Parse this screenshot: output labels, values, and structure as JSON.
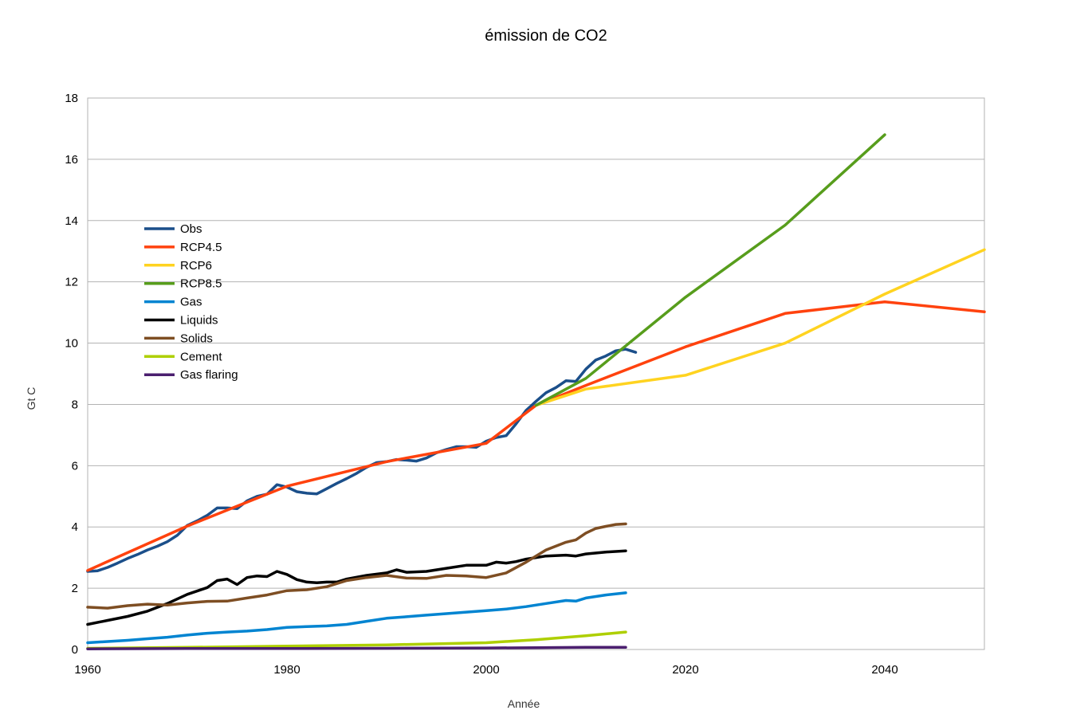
{
  "chart_data": {
    "type": "line",
    "title": "émission de CO2",
    "xlabel": "Année",
    "ylabel": "Gt C",
    "xlim": [
      1960,
      2050
    ],
    "ylim": [
      0,
      18
    ],
    "xticks": [
      1960,
      1980,
      2000,
      2020,
      2040
    ],
    "yticks": [
      0,
      2,
      4,
      6,
      8,
      10,
      12,
      14,
      16,
      18
    ],
    "grid": "horizontal",
    "legend": "left",
    "series": [
      {
        "name": "Obs",
        "color": "#1b4f8a",
        "x": [
          1960,
          1961,
          1962,
          1963,
          1964,
          1965,
          1966,
          1967,
          1968,
          1969,
          1970,
          1971,
          1972,
          1973,
          1974,
          1975,
          1976,
          1977,
          1978,
          1979,
          1980,
          1981,
          1982,
          1983,
          1984,
          1985,
          1986,
          1987,
          1988,
          1989,
          1990,
          1991,
          1992,
          1993,
          1994,
          1995,
          1996,
          1997,
          1998,
          1999,
          2000,
          2001,
          2002,
          2003,
          2004,
          2005,
          2006,
          2007,
          2008,
          2009,
          2010,
          2011,
          2012,
          2013,
          2014,
          2015
        ],
        "y": [
          2.55,
          2.57,
          2.68,
          2.82,
          2.97,
          3.1,
          3.25,
          3.37,
          3.52,
          3.73,
          4.05,
          4.2,
          4.38,
          4.62,
          4.62,
          4.6,
          4.85,
          5.0,
          5.07,
          5.38,
          5.3,
          5.15,
          5.1,
          5.08,
          5.25,
          5.42,
          5.58,
          5.75,
          5.95,
          6.1,
          6.13,
          6.2,
          6.18,
          6.15,
          6.25,
          6.42,
          6.53,
          6.62,
          6.62,
          6.6,
          6.8,
          6.92,
          6.98,
          7.37,
          7.8,
          8.1,
          8.38,
          8.55,
          8.77,
          8.75,
          9.15,
          9.45,
          9.58,
          9.75,
          9.8,
          9.7
        ]
      },
      {
        "name": "RCP4.5",
        "color": "#ff420e",
        "x": [
          1960,
          1970,
          1980,
          1990,
          2000,
          2005,
          2010,
          2020,
          2030,
          2040,
          2050
        ],
        "y": [
          2.58,
          4.03,
          5.33,
          6.13,
          6.73,
          7.97,
          8.62,
          9.88,
          10.97,
          11.35,
          11.02
        ]
      },
      {
        "name": "RCP6",
        "color": "#ffd320",
        "x": [
          2005,
          2010,
          2020,
          2030,
          2040,
          2050
        ],
        "y": [
          7.97,
          8.5,
          8.95,
          10.0,
          11.6,
          13.05
        ]
      },
      {
        "name": "RCP8.5",
        "color": "#579d1c",
        "x": [
          2005,
          2010,
          2020,
          2030,
          2040
        ],
        "y": [
          7.97,
          8.85,
          11.5,
          13.85,
          16.8
        ]
      },
      {
        "name": "Gas",
        "color": "#0084d1",
        "x": [
          1960,
          1962,
          1964,
          1966,
          1968,
          1970,
          1972,
          1974,
          1976,
          1978,
          1980,
          1982,
          1984,
          1986,
          1988,
          1990,
          1992,
          1994,
          1996,
          1998,
          2000,
          2002,
          2004,
          2006,
          2008,
          2009,
          2010,
          2012,
          2014
        ],
        "y": [
          0.22,
          0.26,
          0.3,
          0.35,
          0.4,
          0.47,
          0.53,
          0.57,
          0.6,
          0.65,
          0.72,
          0.75,
          0.77,
          0.82,
          0.92,
          1.02,
          1.07,
          1.12,
          1.17,
          1.22,
          1.27,
          1.32,
          1.4,
          1.5,
          1.6,
          1.58,
          1.68,
          1.78,
          1.85
        ]
      },
      {
        "name": "Liquids",
        "color": "#000000",
        "x": [
          1960,
          1962,
          1964,
          1966,
          1968,
          1970,
          1972,
          1973,
          1974,
          1975,
          1976,
          1977,
          1978,
          1979,
          1980,
          1981,
          1982,
          1983,
          1984,
          1985,
          1986,
          1988,
          1990,
          1991,
          1992,
          1994,
          1996,
          1998,
          2000,
          2001,
          2002,
          2003,
          2004,
          2006,
          2008,
          2009,
          2010,
          2012,
          2014
        ],
        "y": [
          0.82,
          0.95,
          1.08,
          1.25,
          1.5,
          1.8,
          2.02,
          2.25,
          2.3,
          2.12,
          2.35,
          2.4,
          2.38,
          2.55,
          2.45,
          2.28,
          2.2,
          2.18,
          2.2,
          2.2,
          2.3,
          2.42,
          2.5,
          2.6,
          2.52,
          2.55,
          2.65,
          2.75,
          2.75,
          2.85,
          2.82,
          2.87,
          2.95,
          3.05,
          3.08,
          3.05,
          3.12,
          3.18,
          3.22
        ]
      },
      {
        "name": "Solids",
        "color": "#7e4e23",
        "x": [
          1960,
          1962,
          1964,
          1966,
          1968,
          1970,
          1972,
          1974,
          1976,
          1978,
          1980,
          1982,
          1984,
          1986,
          1988,
          1990,
          1992,
          1994,
          1996,
          1998,
          2000,
          2002,
          2004,
          2006,
          2008,
          2009,
          2010,
          2011,
          2012,
          2013,
          2014
        ],
        "y": [
          1.38,
          1.35,
          1.43,
          1.48,
          1.45,
          1.52,
          1.57,
          1.58,
          1.68,
          1.78,
          1.92,
          1.95,
          2.05,
          2.25,
          2.35,
          2.42,
          2.33,
          2.32,
          2.42,
          2.4,
          2.35,
          2.5,
          2.85,
          3.25,
          3.5,
          3.58,
          3.8,
          3.95,
          4.02,
          4.08,
          4.1
        ]
      },
      {
        "name": "Cement",
        "color": "#aecf00",
        "x": [
          1960,
          1970,
          1980,
          1990,
          2000,
          2005,
          2010,
          2014
        ],
        "y": [
          0.04,
          0.07,
          0.11,
          0.15,
          0.22,
          0.32,
          0.45,
          0.57
        ]
      },
      {
        "name": "Gas flaring",
        "color": "#4b1f6f",
        "x": [
          1960,
          1970,
          1980,
          1990,
          2000,
          2005,
          2010,
          2014
        ],
        "y": [
          0.02,
          0.03,
          0.03,
          0.04,
          0.05,
          0.06,
          0.07,
          0.07
        ]
      }
    ]
  }
}
